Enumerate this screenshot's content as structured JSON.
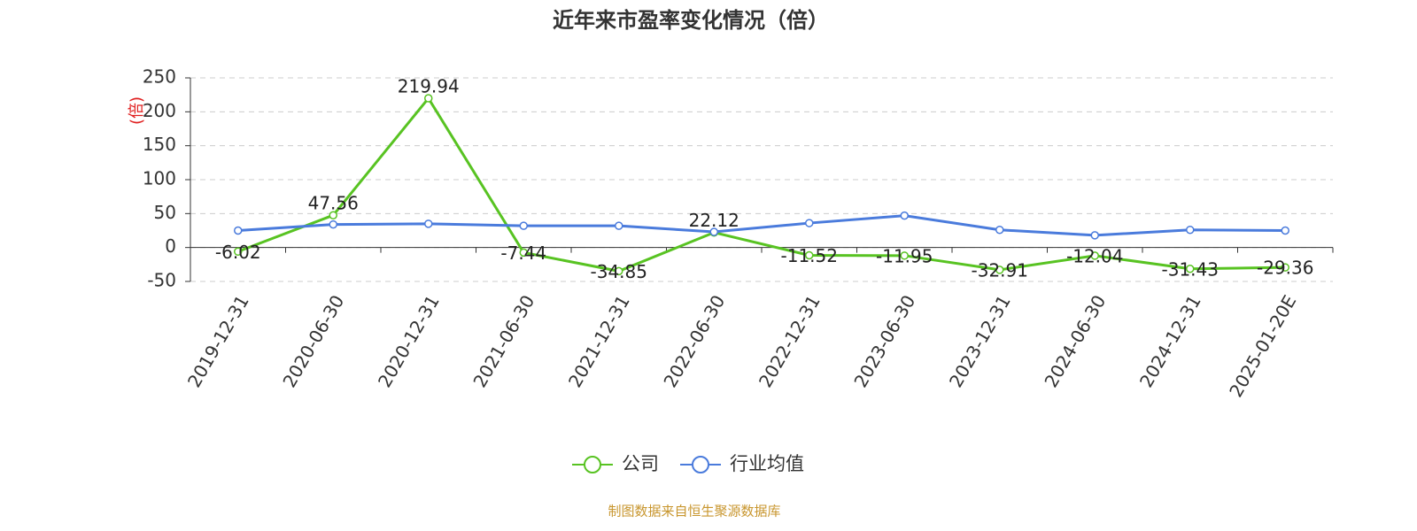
{
  "chart_data": {
    "type": "line",
    "title": "近年来市盈率变化情况（倍）",
    "y_label": "(倍)",
    "categories": [
      "2019-12-31",
      "2020-06-30",
      "2020-12-31",
      "2021-06-30",
      "2021-12-31",
      "2022-06-30",
      "2022-12-31",
      "2023-06-30",
      "2023-12-31",
      "2024-06-30",
      "2024-12-31",
      "2025-01-20E"
    ],
    "series": [
      {
        "name": "公司",
        "color": "#58c322",
        "values": [
          -6.02,
          47.56,
          219.94,
          -7.44,
          -34.85,
          22.12,
          -11.52,
          -11.95,
          -32.91,
          -12.04,
          -31.43,
          -29.36
        ]
      },
      {
        "name": "行业均值",
        "color": "#4a7bdc",
        "values": [
          25,
          34,
          35,
          32,
          32,
          23,
          36,
          47,
          26,
          18,
          26,
          25
        ]
      }
    ],
    "ylim": [
      -50,
      250
    ],
    "yticks": [
      -50,
      0,
      50,
      100,
      150,
      200,
      250
    ],
    "grid": true,
    "legend": "bottom",
    "source": "制图数据来自恒生聚源数据库"
  }
}
